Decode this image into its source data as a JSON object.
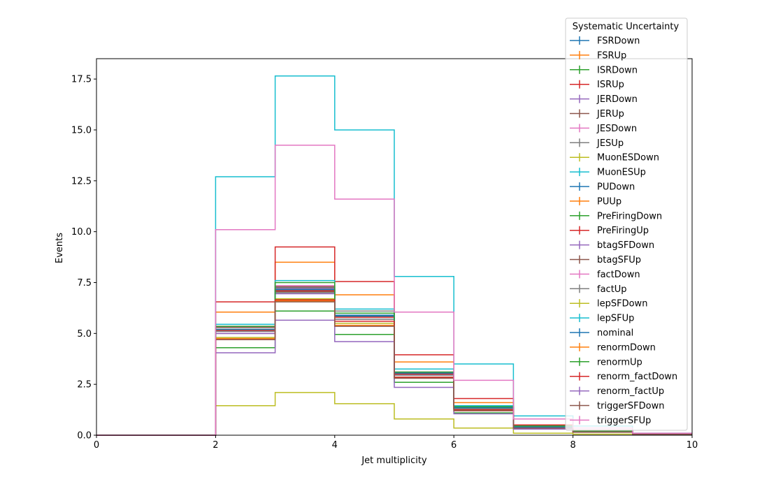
{
  "chart_data": {
    "type": "line",
    "xlabel": "Jet multiplicity",
    "ylabel": "Events",
    "xlim": [
      0,
      10
    ],
    "ylim": [
      0,
      18.5
    ],
    "xticks": [
      0,
      2,
      4,
      6,
      8,
      10
    ],
    "yticks": [
      0.0,
      2.5,
      5.0,
      7.5,
      10.0,
      12.5,
      15.0,
      17.5
    ],
    "ytick_labels": [
      "0.0",
      "2.5",
      "5.0",
      "7.5",
      "10.0",
      "12.5",
      "15.0",
      "17.5"
    ],
    "bin_edges": [
      0,
      1,
      2,
      3,
      4,
      5,
      6,
      7,
      8,
      9,
      10
    ],
    "legend": {
      "title": "Systematic Uncertainty",
      "placement": "top-right"
    },
    "series": [
      {
        "name": "FSRDown",
        "color": "#1f77b4",
        "values": [
          0,
          0,
          5.3,
          7.1,
          5.9,
          3.0,
          1.3,
          0.4,
          0.2,
          0.05
        ]
      },
      {
        "name": "FSRUp",
        "color": "#ff7f0e",
        "values": [
          0,
          0,
          6.05,
          8.5,
          6.9,
          3.6,
          1.6,
          0.5,
          0.25,
          0.05
        ]
      },
      {
        "name": "ISRDown",
        "color": "#2ca02c",
        "values": [
          0,
          0,
          4.3,
          6.1,
          4.95,
          2.6,
          1.1,
          0.35,
          0.15,
          0.05
        ]
      },
      {
        "name": "ISRUp",
        "color": "#d62728",
        "values": [
          0,
          0,
          6.55,
          9.25,
          7.55,
          3.95,
          1.8,
          0.5,
          0.25,
          0.05
        ]
      },
      {
        "name": "JERDown",
        "color": "#9467bd",
        "values": [
          0,
          0,
          5.1,
          7.2,
          5.8,
          3.05,
          1.35,
          0.4,
          0.2,
          0.05
        ]
      },
      {
        "name": "JERUp",
        "color": "#8c564b",
        "values": [
          0,
          0,
          5.0,
          7.05,
          5.7,
          3.0,
          1.3,
          0.4,
          0.2,
          0.05
        ]
      },
      {
        "name": "JESDown",
        "color": "#e377c2",
        "values": [
          0,
          0,
          5.3,
          6.7,
          5.5,
          2.85,
          1.25,
          0.35,
          0.15,
          0.05
        ]
      },
      {
        "name": "JESUp",
        "color": "#7f7f7f",
        "values": [
          0,
          0,
          5.45,
          7.25,
          6.1,
          3.25,
          1.45,
          0.45,
          0.2,
          0.05
        ]
      },
      {
        "name": "MuonESDown",
        "color": "#bcbd22",
        "values": [
          0,
          0,
          1.45,
          2.1,
          1.55,
          0.8,
          0.35,
          0.1,
          0.05,
          0.02
        ]
      },
      {
        "name": "MuonESUp",
        "color": "#17becf",
        "values": [
          0,
          0,
          12.7,
          17.65,
          15.0,
          7.8,
          3.5,
          0.95,
          0.45,
          0.1
        ]
      },
      {
        "name": "PUDown",
        "color": "#1f77b4",
        "values": [
          0,
          0,
          5.2,
          7.15,
          5.85,
          3.05,
          1.35,
          0.4,
          0.2,
          0.05
        ]
      },
      {
        "name": "PUUp",
        "color": "#ff7f0e",
        "values": [
          0,
          0,
          5.15,
          7.1,
          5.8,
          3.0,
          1.3,
          0.4,
          0.2,
          0.05
        ]
      },
      {
        "name": "PreFiringDown",
        "color": "#2ca02c",
        "values": [
          0,
          0,
          5.2,
          7.15,
          5.85,
          3.05,
          1.35,
          0.4,
          0.2,
          0.05
        ]
      },
      {
        "name": "PreFiringUp",
        "color": "#d62728",
        "values": [
          0,
          0,
          5.15,
          7.1,
          5.8,
          3.0,
          1.3,
          0.4,
          0.2,
          0.05
        ]
      },
      {
        "name": "btagSFDown",
        "color": "#9467bd",
        "values": [
          0,
          0,
          5.0,
          6.95,
          5.7,
          2.95,
          1.3,
          0.4,
          0.2,
          0.05
        ]
      },
      {
        "name": "btagSFUp",
        "color": "#8c564b",
        "values": [
          0,
          0,
          5.3,
          7.3,
          6.0,
          3.1,
          1.4,
          0.4,
          0.2,
          0.05
        ]
      },
      {
        "name": "factDown",
        "color": "#e377c2",
        "values": [
          0,
          0,
          5.35,
          7.35,
          6.0,
          3.1,
          1.4,
          0.4,
          0.2,
          0.05
        ]
      },
      {
        "name": "factUp",
        "color": "#7f7f7f",
        "values": [
          0,
          0,
          5.1,
          7.0,
          5.7,
          2.95,
          1.3,
          0.4,
          0.2,
          0.05
        ]
      },
      {
        "name": "lepSFDown",
        "color": "#bcbd22",
        "values": [
          0,
          0,
          4.8,
          6.7,
          5.5,
          2.85,
          1.25,
          0.35,
          0.15,
          0.05
        ]
      },
      {
        "name": "lepSFUp",
        "color": "#17becf",
        "values": [
          0,
          0,
          5.45,
          7.6,
          6.2,
          3.25,
          1.45,
          0.45,
          0.2,
          0.05
        ]
      },
      {
        "name": "nominal",
        "color": "#1f77b4",
        "values": [
          0,
          0,
          5.2,
          7.15,
          5.85,
          3.05,
          1.35,
          0.4,
          0.2,
          0.05
        ]
      },
      {
        "name": "renormDown",
        "color": "#ff7f0e",
        "values": [
          0,
          0,
          4.75,
          6.6,
          5.4,
          2.8,
          1.2,
          0.35,
          0.15,
          0.05
        ]
      },
      {
        "name": "renormUp",
        "color": "#2ca02c",
        "values": [
          0,
          0,
          5.35,
          7.5,
          6.0,
          3.1,
          1.4,
          0.45,
          0.2,
          0.05
        ]
      },
      {
        "name": "renorm_factDown",
        "color": "#d62728",
        "values": [
          0,
          0,
          4.7,
          6.65,
          5.6,
          2.85,
          1.25,
          0.35,
          0.15,
          0.05
        ]
      },
      {
        "name": "renorm_factUp",
        "color": "#9467bd",
        "values": [
          0,
          0,
          4.05,
          5.65,
          4.6,
          2.35,
          1.05,
          0.3,
          0.15,
          0.05
        ]
      },
      {
        "name": "triggerSFDown",
        "color": "#8c564b",
        "values": [
          0,
          0,
          4.7,
          6.55,
          5.35,
          2.8,
          1.2,
          0.35,
          0.15,
          0.05
        ]
      },
      {
        "name": "triggerSFUp",
        "color": "#e377c2",
        "values": [
          0,
          0,
          10.1,
          14.25,
          11.6,
          6.05,
          2.7,
          0.8,
          0.35,
          0.1
        ]
      }
    ]
  }
}
